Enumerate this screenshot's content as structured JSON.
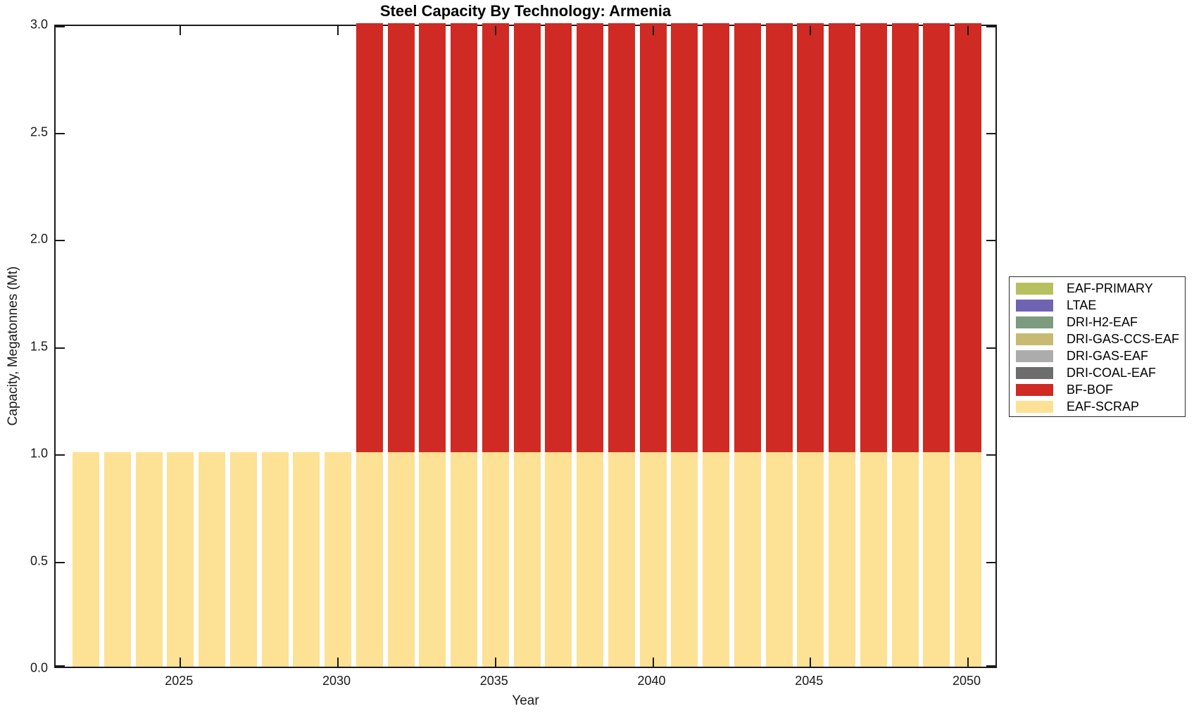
{
  "chart_data": {
    "type": "bar",
    "stacked": true,
    "title": "Steel Capacity By Technology: Armenia",
    "xlabel": "Year",
    "ylabel": "Capacity, Megatonnes (Mt)",
    "ylim": [
      0,
      3
    ],
    "ytick_labels": [
      "0.0",
      "0.5",
      "1.0",
      "1.5",
      "2.0",
      "2.5",
      "3.0"
    ],
    "ytick_values": [
      0,
      0.5,
      1.0,
      1.5,
      2.0,
      2.5,
      3.0
    ],
    "xtick_labels": [
      "2025",
      "2030",
      "2035",
      "2040",
      "2045",
      "2050"
    ],
    "xtick_values": [
      2025,
      2030,
      2035,
      2040,
      2045,
      2050
    ],
    "x_years": [
      2022,
      2023,
      2024,
      2025,
      2026,
      2027,
      2028,
      2029,
      2030,
      2031,
      2032,
      2033,
      2034,
      2035,
      2036,
      2037,
      2038,
      2039,
      2040,
      2041,
      2042,
      2043,
      2044,
      2045,
      2046,
      2047,
      2048,
      2049,
      2050
    ],
    "series": [
      {
        "name": "EAF-SCRAP",
        "color": "#FDE194",
        "values": [
          1,
          1,
          1,
          1,
          1,
          1,
          1,
          1,
          1,
          1,
          1,
          1,
          1,
          1,
          1,
          1,
          1,
          1,
          1,
          1,
          1,
          1,
          1,
          1,
          1,
          1,
          1,
          1,
          1
        ]
      },
      {
        "name": "BF-BOF",
        "color": "#CF2A23",
        "values": [
          0,
          0,
          0,
          0,
          0,
          0,
          0,
          0,
          0,
          2,
          2,
          2,
          2,
          2,
          2,
          2,
          2,
          2,
          2,
          2,
          2,
          2,
          2,
          2,
          2,
          2,
          2,
          2,
          2
        ]
      }
    ],
    "legend": {
      "position": "outside-right",
      "entries": [
        {
          "label": "EAF-PRIMARY",
          "color": "#B6C05F"
        },
        {
          "label": "LTAE",
          "color": "#6F63B4"
        },
        {
          "label": "DRI-H2-EAF",
          "color": "#7C9B7F"
        },
        {
          "label": "DRI-GAS-CCS-EAF",
          "color": "#C7BB73"
        },
        {
          "label": "DRI-GAS-EAF",
          "color": "#ACACAC"
        },
        {
          "label": "DRI-COAL-EAF",
          "color": "#6D6D6D"
        },
        {
          "label": "BF-BOF",
          "color": "#CF2A23"
        },
        {
          "label": "EAF-SCRAP",
          "color": "#FDE194"
        }
      ]
    },
    "grid": false,
    "axis_color": "#1a1a1a",
    "background_color": "#ffffff"
  }
}
